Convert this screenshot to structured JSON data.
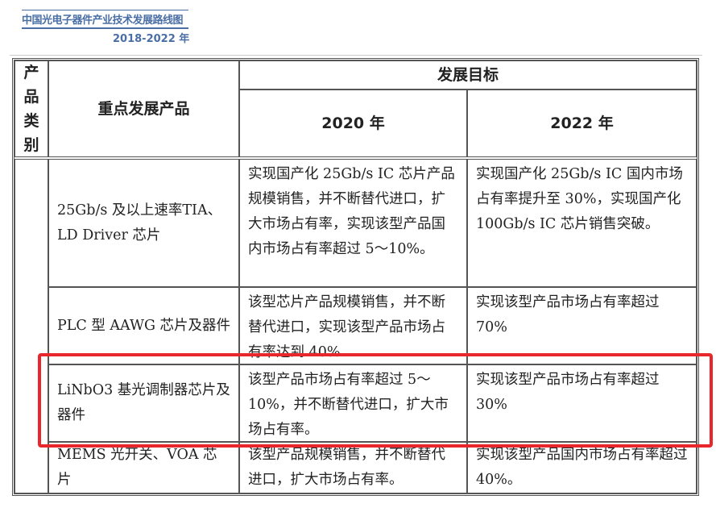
{
  "header": {
    "title": "中国光电子器件产业技术发展路线图",
    "years": "2018-2022 年"
  },
  "table": {
    "col_category": "产品类别",
    "col_product": "重点发展产品",
    "col_goal": "发展目标",
    "col_2020": "2020 年",
    "col_2022": "2022 年",
    "rows": [
      {
        "product": "25Gb/s 及以上速率TIA、LD Driver 芯片",
        "goal_2020": "实现国产化 25Gb/s IC 芯片产品规模销售，并不断替代进口，扩大市场占有率，实现该型产品国内市场占有率超过 5～10%。",
        "goal_2022": "实现国产化 25Gb/s IC 国内市场占有率提升至 30%，实现国产化 100Gb/s IC 芯片销售突破。"
      },
      {
        "product": "PLC 型 AAWG 芯片及器件",
        "goal_2020": "该型芯片产品规模销售，并不断替代进口，实现该型产品市场占有率达到 40%",
        "goal_2022": "实现该型产品市场占有率超过 70%"
      },
      {
        "product": "LiNbO3 基光调制器芯片及器件",
        "goal_2020": "该型产品市场占有率超过 5～10%，并不断替代进口，扩大市场占有率。",
        "goal_2022": "实现该型产品市场占有率超过 30%"
      },
      {
        "product": "MEMS 光开关、VOA 芯片",
        "goal_2020": "该型产品规模销售，并不断替代进口，扩大市场占有率。",
        "goal_2022": "实现该型产品国内市场占有率超过 40%。"
      }
    ]
  },
  "highlight": {
    "color": "#e8262b"
  }
}
